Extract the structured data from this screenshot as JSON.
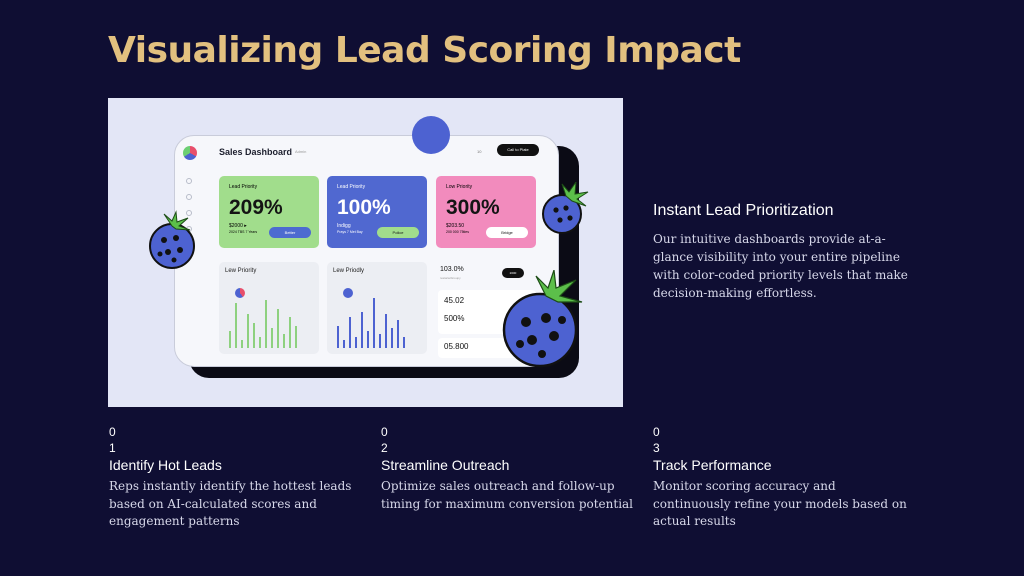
{
  "slide": {
    "title": "Visualizing Lead Scoring Impact"
  },
  "dashboard": {
    "title": "Sales Dashboard",
    "subtitle": "Admin",
    "meta": "10",
    "button": "Call to Plate",
    "cards": [
      {
        "label": "Lead Priority",
        "value": "209%",
        "foot": "$2000 ▸",
        "sub": "2024 TBS 7 Years",
        "button": "Better",
        "color": "#a1dd8c"
      },
      {
        "label": "Lead Priority",
        "value": "100%",
        "foot": "Indigg",
        "sub": "Prays 7 Met Bay",
        "button": "Police",
        "color": "#5068d0"
      },
      {
        "label": "Low Priority",
        "value": "300%",
        "foot": "$203.50",
        "sub": "200 000 75ties",
        "button": "Bridge",
        "color": "#f28bbd"
      }
    ],
    "panels": [
      {
        "label": "Lew Priority",
        "bars": [
          0.3,
          0.8,
          0.15,
          0.6,
          0.45,
          0.2,
          0.85,
          0.35,
          0.7,
          0.25,
          0.55,
          0.4
        ]
      },
      {
        "label": "Lew Priodly",
        "bars": [
          0.4,
          0.15,
          0.55,
          0.2,
          0.65,
          0.3,
          0.9,
          0.25,
          0.6,
          0.35,
          0.5,
          0.2
        ]
      }
    ],
    "list": {
      "top": "103.0%",
      "top_sub": "restartelGroupy",
      "button": "2000",
      "rows": [
        "45.02",
        "500%",
        "05.800"
      ]
    }
  },
  "feature": {
    "heading": "Instant Lead Prioritization",
    "description": "Our intuitive dashboards provide at-a-glance visibility into your entire pipeline with color-coded priority levels that make decision-making effortless."
  },
  "columns": [
    {
      "number": "01",
      "heading": "Identify Hot Leads",
      "description": "Reps instantly identify the hottest leads based on AI-calculated scores and engagement patterns"
    },
    {
      "number": "02",
      "heading": "Streamline Outreach",
      "description": "Optimize sales outreach and follow-up timing for maximum conversion potential"
    },
    {
      "number": "03",
      "heading": "Track Performance",
      "description": "Monitor scoring accuracy and continuously refine your models based on actual results"
    }
  ]
}
